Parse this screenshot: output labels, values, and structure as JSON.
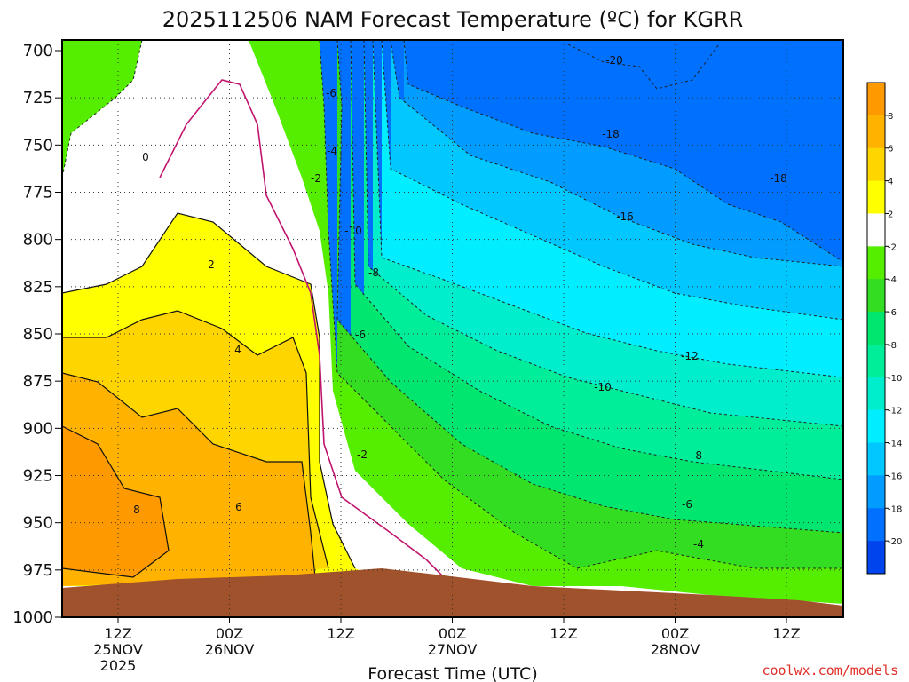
{
  "chart_data": {
    "type": "heatmap",
    "title": "2025112506 NAM Forecast Temperature (ºC) for KGRR",
    "xlabel": "Forecast Time (UTC)",
    "ylabel": "",
    "y_scale": "pressure (hPa), inverted",
    "ylim": [
      1000,
      700
    ],
    "y_ticks": [
      "700",
      "725",
      "750",
      "775",
      "800",
      "825",
      "850",
      "875",
      "900",
      "925",
      "950",
      "975",
      "1000"
    ],
    "x_ticks": [
      {
        "hour": "12Z",
        "date": "25NOV",
        "year": "2025"
      },
      {
        "hour": "00Z",
        "date": "26NOV",
        "year": ""
      },
      {
        "hour": "12Z",
        "date": "",
        "year": ""
      },
      {
        "hour": "00Z",
        "date": "27NOV",
        "year": ""
      },
      {
        "hour": "12Z",
        "date": "",
        "year": ""
      },
      {
        "hour": "00Z",
        "date": "28NOV",
        "year": ""
      },
      {
        "hour": "12Z",
        "date": "",
        "year": ""
      }
    ],
    "grid": true,
    "colorbar": {
      "placement": "right",
      "labels": [
        "8",
        "6",
        "4",
        "2",
        "-2",
        "-4",
        "-6",
        "-8",
        "-10",
        "-12",
        "-14",
        "-16",
        "-18",
        "-20"
      ],
      "colors": [
        "#ff9900",
        "#ffb300",
        "#ffd500",
        "#ffff00",
        "#ffffff",
        "#55ee00",
        "#33dd22",
        "#00e66e",
        "#00ee99",
        "#00eecc",
        "#00eeff",
        "#00c8ff",
        "#009cff",
        "#0070ff",
        "#0044ee"
      ]
    },
    "contour_labels": [
      "-20",
      "-18",
      "-18",
      "-16",
      "-12",
      "-10",
      "-8",
      "-6",
      "-4",
      "-10",
      "-8",
      "-6",
      "-2",
      "-6",
      "-4",
      "-2",
      "0",
      "2",
      "4",
      "6",
      "8"
    ],
    "ground_color": "#a0522d",
    "freezing_line_color": "#c0146e"
  },
  "credit": "coolwx.com/models"
}
